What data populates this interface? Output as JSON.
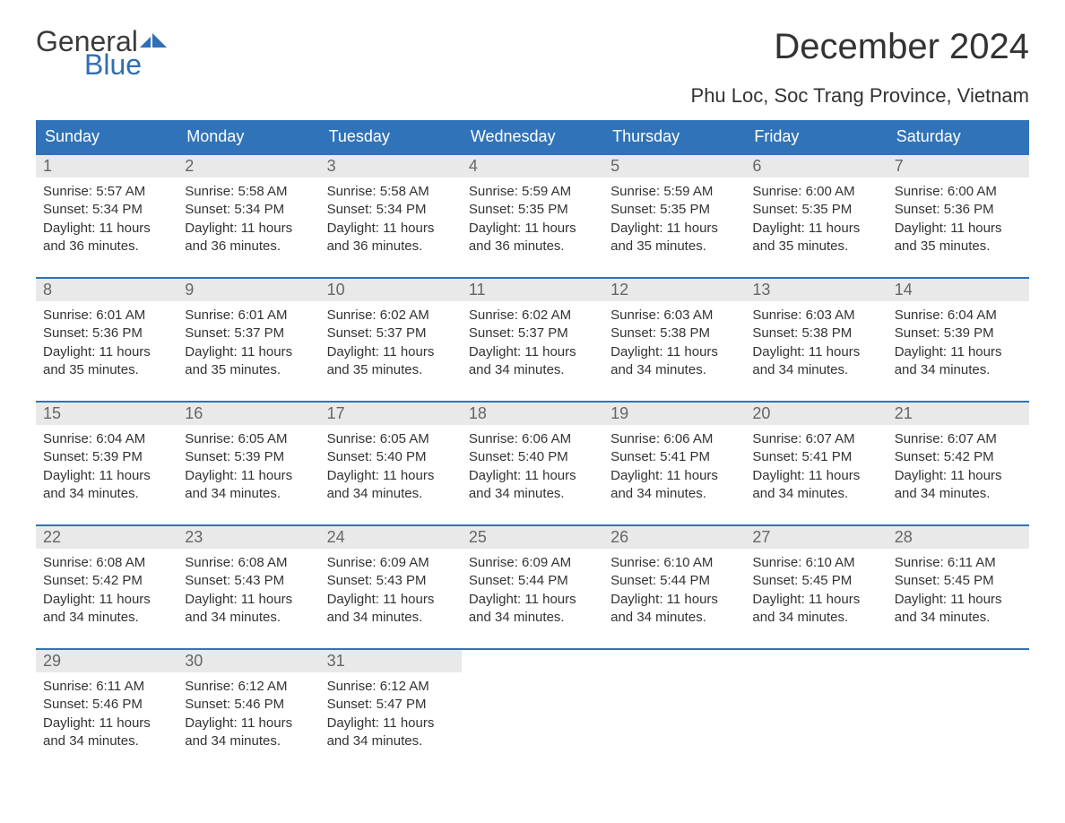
{
  "logo": {
    "text_general": "General",
    "text_blue": "Blue",
    "flag_color": "#2e6fb5"
  },
  "title": "December 2024",
  "location": "Phu Loc, Soc Trang Province, Vietnam",
  "colors": {
    "header_bg": "#3173b8",
    "header_text": "#ffffff",
    "daynum_bg": "#e9e9e9",
    "daynum_text": "#666666",
    "body_text": "#333333",
    "week_border": "#3173b8"
  },
  "weekdays": [
    "Sunday",
    "Monday",
    "Tuesday",
    "Wednesday",
    "Thursday",
    "Friday",
    "Saturday"
  ],
  "labels": {
    "sunrise": "Sunrise",
    "sunset": "Sunset",
    "daylight": "Daylight"
  },
  "weeks": [
    [
      {
        "day": "1",
        "sunrise": "5:57 AM",
        "sunset": "5:34 PM",
        "daylight": "11 hours and 36 minutes."
      },
      {
        "day": "2",
        "sunrise": "5:58 AM",
        "sunset": "5:34 PM",
        "daylight": "11 hours and 36 minutes."
      },
      {
        "day": "3",
        "sunrise": "5:58 AM",
        "sunset": "5:34 PM",
        "daylight": "11 hours and 36 minutes."
      },
      {
        "day": "4",
        "sunrise": "5:59 AM",
        "sunset": "5:35 PM",
        "daylight": "11 hours and 36 minutes."
      },
      {
        "day": "5",
        "sunrise": "5:59 AM",
        "sunset": "5:35 PM",
        "daylight": "11 hours and 35 minutes."
      },
      {
        "day": "6",
        "sunrise": "6:00 AM",
        "sunset": "5:35 PM",
        "daylight": "11 hours and 35 minutes."
      },
      {
        "day": "7",
        "sunrise": "6:00 AM",
        "sunset": "5:36 PM",
        "daylight": "11 hours and 35 minutes."
      }
    ],
    [
      {
        "day": "8",
        "sunrise": "6:01 AM",
        "sunset": "5:36 PM",
        "daylight": "11 hours and 35 minutes."
      },
      {
        "day": "9",
        "sunrise": "6:01 AM",
        "sunset": "5:37 PM",
        "daylight": "11 hours and 35 minutes."
      },
      {
        "day": "10",
        "sunrise": "6:02 AM",
        "sunset": "5:37 PM",
        "daylight": "11 hours and 35 minutes."
      },
      {
        "day": "11",
        "sunrise": "6:02 AM",
        "sunset": "5:37 PM",
        "daylight": "11 hours and 34 minutes."
      },
      {
        "day": "12",
        "sunrise": "6:03 AM",
        "sunset": "5:38 PM",
        "daylight": "11 hours and 34 minutes."
      },
      {
        "day": "13",
        "sunrise": "6:03 AM",
        "sunset": "5:38 PM",
        "daylight": "11 hours and 34 minutes."
      },
      {
        "day": "14",
        "sunrise": "6:04 AM",
        "sunset": "5:39 PM",
        "daylight": "11 hours and 34 minutes."
      }
    ],
    [
      {
        "day": "15",
        "sunrise": "6:04 AM",
        "sunset": "5:39 PM",
        "daylight": "11 hours and 34 minutes."
      },
      {
        "day": "16",
        "sunrise": "6:05 AM",
        "sunset": "5:39 PM",
        "daylight": "11 hours and 34 minutes."
      },
      {
        "day": "17",
        "sunrise": "6:05 AM",
        "sunset": "5:40 PM",
        "daylight": "11 hours and 34 minutes."
      },
      {
        "day": "18",
        "sunrise": "6:06 AM",
        "sunset": "5:40 PM",
        "daylight": "11 hours and 34 minutes."
      },
      {
        "day": "19",
        "sunrise": "6:06 AM",
        "sunset": "5:41 PM",
        "daylight": "11 hours and 34 minutes."
      },
      {
        "day": "20",
        "sunrise": "6:07 AM",
        "sunset": "5:41 PM",
        "daylight": "11 hours and 34 minutes."
      },
      {
        "day": "21",
        "sunrise": "6:07 AM",
        "sunset": "5:42 PM",
        "daylight": "11 hours and 34 minutes."
      }
    ],
    [
      {
        "day": "22",
        "sunrise": "6:08 AM",
        "sunset": "5:42 PM",
        "daylight": "11 hours and 34 minutes."
      },
      {
        "day": "23",
        "sunrise": "6:08 AM",
        "sunset": "5:43 PM",
        "daylight": "11 hours and 34 minutes."
      },
      {
        "day": "24",
        "sunrise": "6:09 AM",
        "sunset": "5:43 PM",
        "daylight": "11 hours and 34 minutes."
      },
      {
        "day": "25",
        "sunrise": "6:09 AM",
        "sunset": "5:44 PM",
        "daylight": "11 hours and 34 minutes."
      },
      {
        "day": "26",
        "sunrise": "6:10 AM",
        "sunset": "5:44 PM",
        "daylight": "11 hours and 34 minutes."
      },
      {
        "day": "27",
        "sunrise": "6:10 AM",
        "sunset": "5:45 PM",
        "daylight": "11 hours and 34 minutes."
      },
      {
        "day": "28",
        "sunrise": "6:11 AM",
        "sunset": "5:45 PM",
        "daylight": "11 hours and 34 minutes."
      }
    ],
    [
      {
        "day": "29",
        "sunrise": "6:11 AM",
        "sunset": "5:46 PM",
        "daylight": "11 hours and 34 minutes."
      },
      {
        "day": "30",
        "sunrise": "6:12 AM",
        "sunset": "5:46 PM",
        "daylight": "11 hours and 34 minutes."
      },
      {
        "day": "31",
        "sunrise": "6:12 AM",
        "sunset": "5:47 PM",
        "daylight": "11 hours and 34 minutes."
      },
      null,
      null,
      null,
      null
    ]
  ]
}
